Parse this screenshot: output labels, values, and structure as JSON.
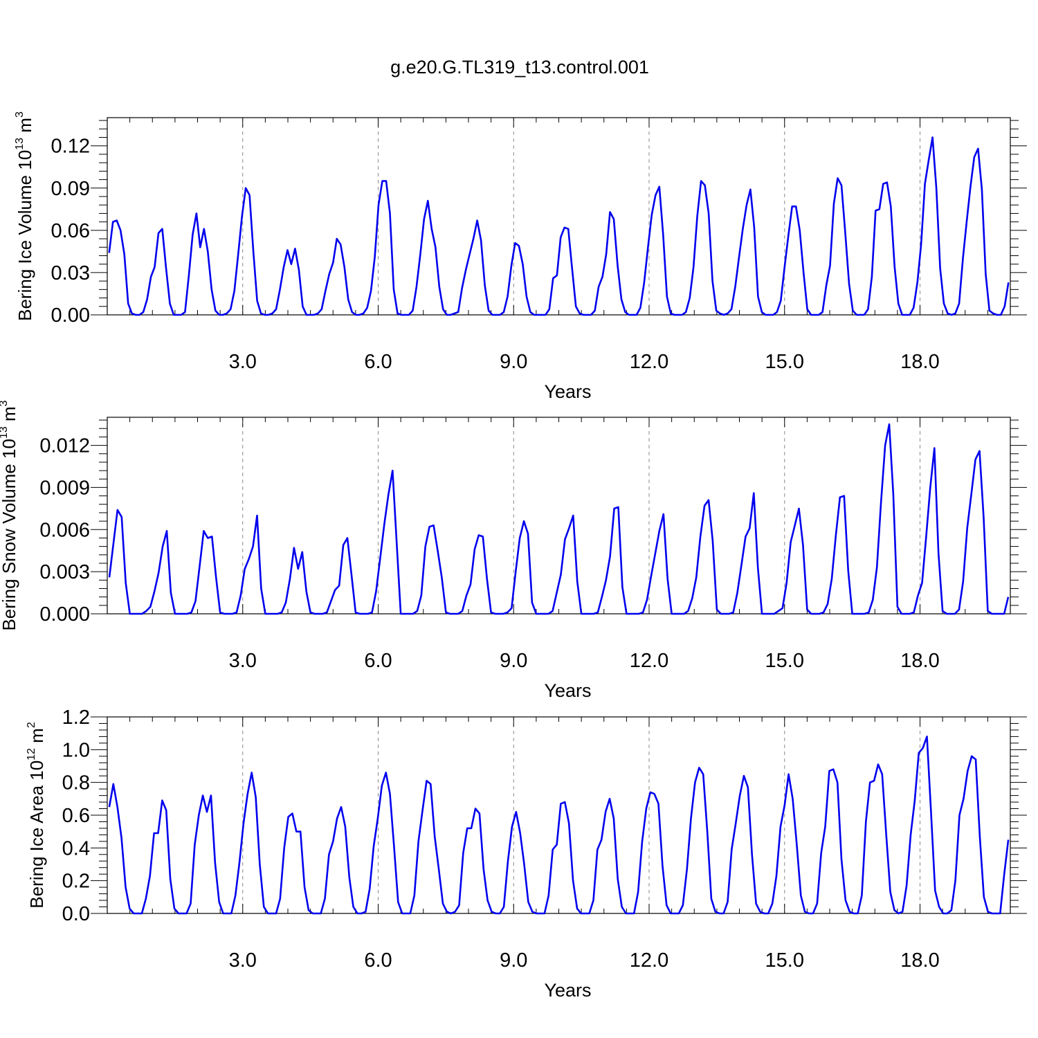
{
  "figure": {
    "title": "g.e20.G.TL319_t13.control.001"
  },
  "chart_data": [
    {
      "type": "line",
      "xlabel": "Years",
      "ylabel": {
        "base": "Bering Ice Volume 10",
        "exp": "13",
        "unit": " m",
        "unit_exp": "3"
      },
      "xlim": [
        0.0,
        20.0
      ],
      "ylim": [
        0.0,
        0.14
      ],
      "xticks": [
        3,
        6,
        9,
        12,
        15,
        18
      ],
      "xtick_labels": [
        "3.0",
        "6.0",
        "9.0",
        "12.0",
        "15.0",
        "18.0"
      ],
      "yticks": [
        0,
        0.03,
        0.06,
        0.09,
        0.12
      ],
      "ytick_labels": [
        "0.00",
        "0.03",
        "0.06",
        "0.09",
        "0.12"
      ],
      "grid": "vertical-dashed-major",
      "line_color": "#0000ee",
      "values": [
        0.044,
        0.066,
        0.067,
        0.06,
        0.043,
        0.008,
        0.001,
        0.0,
        0.0,
        0.002,
        0.011,
        0.027,
        0.034,
        0.058,
        0.061,
        0.033,
        0.008,
        0.0,
        0.0,
        0.0,
        0.002,
        0.028,
        0.057,
        0.072,
        0.048,
        0.061,
        0.045,
        0.018,
        0.003,
        0.0,
        0.0,
        0.001,
        0.004,
        0.017,
        0.043,
        0.07,
        0.09,
        0.085,
        0.045,
        0.01,
        0.001,
        0.0,
        0.0,
        0.001,
        0.004,
        0.018,
        0.034,
        0.046,
        0.036,
        0.047,
        0.032,
        0.006,
        0.0,
        0.0,
        0.0,
        0.001,
        0.004,
        0.017,
        0.029,
        0.037,
        0.054,
        0.05,
        0.034,
        0.011,
        0.002,
        0.0,
        0.0,
        0.001,
        0.005,
        0.017,
        0.041,
        0.078,
        0.095,
        0.095,
        0.072,
        0.018,
        0.001,
        0.0,
        0.0,
        0.0,
        0.003,
        0.02,
        0.043,
        0.068,
        0.081,
        0.061,
        0.048,
        0.02,
        0.004,
        0.0,
        0.0,
        0.001,
        0.002,
        0.019,
        0.032,
        0.043,
        0.054,
        0.067,
        0.053,
        0.021,
        0.003,
        0.0,
        0.0,
        0.0,
        0.002,
        0.013,
        0.035,
        0.051,
        0.049,
        0.036,
        0.013,
        0.002,
        0.0,
        0.0,
        0.0,
        0.0,
        0.004,
        0.026,
        0.028,
        0.055,
        0.062,
        0.061,
        0.033,
        0.006,
        0.001,
        0.0,
        0.0,
        0.0,
        0.003,
        0.02,
        0.027,
        0.043,
        0.073,
        0.068,
        0.035,
        0.011,
        0.002,
        0.0,
        0.0,
        0.0,
        0.005,
        0.023,
        0.048,
        0.071,
        0.085,
        0.091,
        0.057,
        0.013,
        0.001,
        0.0,
        0.0,
        0.0,
        0.002,
        0.012,
        0.034,
        0.07,
        0.095,
        0.092,
        0.072,
        0.024,
        0.003,
        0.001,
        0.0,
        0.001,
        0.004,
        0.02,
        0.041,
        0.061,
        0.078,
        0.089,
        0.062,
        0.013,
        0.002,
        0.0,
        0.0,
        0.0,
        0.002,
        0.01,
        0.034,
        0.056,
        0.077,
        0.077,
        0.06,
        0.03,
        0.004,
        0.0,
        0.0,
        0.0,
        0.002,
        0.021,
        0.035,
        0.079,
        0.097,
        0.092,
        0.058,
        0.022,
        0.003,
        0.0,
        0.0,
        0.0,
        0.004,
        0.027,
        0.074,
        0.075,
        0.093,
        0.094,
        0.077,
        0.034,
        0.008,
        0.0,
        0.0,
        0.0,
        0.005,
        0.023,
        0.05,
        0.093,
        0.11,
        0.126,
        0.09,
        0.033,
        0.008,
        0.001,
        0.0,
        0.001,
        0.008,
        0.04,
        0.066,
        0.091,
        0.112,
        0.118,
        0.089,
        0.029,
        0.003,
        0.001,
        0.0,
        0.0,
        0.006,
        0.023
      ]
    },
    {
      "type": "line",
      "xlabel": "Years",
      "ylabel": {
        "base": "Bering Snow Volume 10",
        "exp": "13",
        "unit": " m",
        "unit_exp": "3"
      },
      "xlim": [
        0.0,
        20.0
      ],
      "ylim": [
        0.0,
        0.014
      ],
      "xticks": [
        3,
        6,
        9,
        12,
        15,
        18
      ],
      "xtick_labels": [
        "3.0",
        "6.0",
        "9.0",
        "12.0",
        "15.0",
        "18.0"
      ],
      "yticks": [
        0,
        0.003,
        0.006,
        0.009,
        0.012
      ],
      "ytick_labels": [
        "0.000",
        "0.003",
        "0.006",
        "0.009",
        "0.012"
      ],
      "grid": "vertical-dashed-major",
      "line_color": "#0000ee",
      "values": [
        0.0026,
        0.005,
        0.0074,
        0.0069,
        0.0022,
        0.0,
        0.0,
        0.0,
        0.0,
        0.0002,
        0.0005,
        0.0016,
        0.0029,
        0.0048,
        0.0059,
        0.0015,
        0.0,
        0.0,
        0.0,
        0.0,
        0.0001,
        0.0009,
        0.0034,
        0.0059,
        0.0054,
        0.0055,
        0.0026,
        0.0001,
        0.0,
        0.0,
        0.0,
        0.0001,
        0.0013,
        0.0032,
        0.0039,
        0.0048,
        0.007,
        0.0018,
        0.0,
        0.0,
        0.0,
        0.0,
        0.0001,
        0.0008,
        0.0025,
        0.0047,
        0.0032,
        0.0044,
        0.0016,
        0.0001,
        0.0,
        0.0,
        0.0,
        0.0001,
        0.0009,
        0.0017,
        0.002,
        0.0049,
        0.0054,
        0.0028,
        0.0001,
        0.0,
        0.0,
        0.0,
        0.0001,
        0.0016,
        0.004,
        0.0064,
        0.0085,
        0.0102,
        0.0051,
        0.0,
        0.0,
        0.0,
        0.0,
        0.0002,
        0.0013,
        0.0048,
        0.0062,
        0.0063,
        0.0045,
        0.0026,
        0.0001,
        0.0,
        0.0,
        0.0,
        0.0002,
        0.0013,
        0.0021,
        0.0046,
        0.0056,
        0.0055,
        0.0025,
        0.0001,
        0.0,
        0.0,
        0.0,
        0.0001,
        0.0004,
        0.003,
        0.0054,
        0.0066,
        0.0057,
        0.0008,
        0.0,
        0.0,
        0.0,
        0.0,
        0.0002,
        0.0015,
        0.0028,
        0.0053,
        0.0061,
        0.007,
        0.0023,
        0.0,
        0.0,
        0.0,
        0.0,
        0.0001,
        0.0012,
        0.0024,
        0.0041,
        0.0075,
        0.0076,
        0.0019,
        0.0,
        0.0,
        0.0,
        0.0,
        0.0001,
        0.001,
        0.0027,
        0.0043,
        0.0059,
        0.0071,
        0.0025,
        0.0,
        0.0,
        0.0,
        0.0,
        0.0002,
        0.0011,
        0.0026,
        0.0055,
        0.0077,
        0.0081,
        0.0052,
        0.0003,
        0.0,
        0.0,
        0.0,
        0.0001,
        0.0015,
        0.0035,
        0.0055,
        0.0061,
        0.0086,
        0.0033,
        0.0,
        0.0,
        0.0,
        0.0,
        0.0002,
        0.0004,
        0.0022,
        0.0051,
        0.0063,
        0.0075,
        0.0049,
        0.0003,
        0.0,
        0.0,
        0.0,
        0.0001,
        0.0007,
        0.0025,
        0.0056,
        0.0083,
        0.0084,
        0.0031,
        0.0,
        0.0,
        0.0,
        0.0,
        0.0001,
        0.001,
        0.0033,
        0.0079,
        0.012,
        0.0135,
        0.0085,
        0.0005,
        0.0,
        0.0,
        0.0,
        0.0001,
        0.0013,
        0.0022,
        0.0055,
        0.009,
        0.0118,
        0.0043,
        0.0002,
        0.0,
        0.0,
        0.0,
        0.0003,
        0.0023,
        0.0061,
        0.0085,
        0.011,
        0.0116,
        0.0069,
        0.0002,
        0.0,
        0.0,
        0.0,
        0.0,
        0.0012
      ]
    },
    {
      "type": "line",
      "xlabel": "Years",
      "ylabel": {
        "base": "Bering Ice Area 10",
        "exp": "12",
        "unit": " m",
        "unit_exp": "2"
      },
      "xlim": [
        0.0,
        20.0
      ],
      "ylim": [
        0.0,
        1.2
      ],
      "xticks": [
        3,
        6,
        9,
        12,
        15,
        18
      ],
      "xtick_labels": [
        "3.0",
        "6.0",
        "9.0",
        "12.0",
        "15.0",
        "18.0"
      ],
      "yticks": [
        0,
        0.2,
        0.4,
        0.6,
        0.8,
        1.0,
        1.2
      ],
      "ytick_labels": [
        "0.0",
        "0.2",
        "0.4",
        "0.6",
        "0.8",
        "1.0",
        "1.2"
      ],
      "grid": "vertical-dashed-major",
      "line_color": "#0000ee",
      "values": [
        0.65,
        0.79,
        0.65,
        0.46,
        0.16,
        0.03,
        0.0,
        0.0,
        0.0,
        0.09,
        0.23,
        0.49,
        0.49,
        0.69,
        0.63,
        0.21,
        0.03,
        0.0,
        0.0,
        0.0,
        0.06,
        0.42,
        0.6,
        0.72,
        0.62,
        0.72,
        0.31,
        0.07,
        0.0,
        0.0,
        0.0,
        0.11,
        0.31,
        0.55,
        0.73,
        0.86,
        0.71,
        0.3,
        0.04,
        0.0,
        0.0,
        0.0,
        0.09,
        0.4,
        0.59,
        0.61,
        0.5,
        0.5,
        0.16,
        0.02,
        0.0,
        0.0,
        0.0,
        0.09,
        0.36,
        0.44,
        0.58,
        0.65,
        0.53,
        0.22,
        0.04,
        0.0,
        0.0,
        0.01,
        0.15,
        0.41,
        0.58,
        0.78,
        0.86,
        0.73,
        0.41,
        0.07,
        0.0,
        0.0,
        0.0,
        0.11,
        0.44,
        0.63,
        0.81,
        0.79,
        0.47,
        0.27,
        0.06,
        0.01,
        0.0,
        0.01,
        0.05,
        0.37,
        0.52,
        0.52,
        0.64,
        0.61,
        0.27,
        0.08,
        0.01,
        0.0,
        0.0,
        0.04,
        0.32,
        0.53,
        0.62,
        0.49,
        0.3,
        0.07,
        0.01,
        0.0,
        0.0,
        0.0,
        0.11,
        0.39,
        0.42,
        0.67,
        0.68,
        0.55,
        0.2,
        0.03,
        0.0,
        0.0,
        0.0,
        0.08,
        0.39,
        0.45,
        0.62,
        0.7,
        0.58,
        0.21,
        0.04,
        0.0,
        0.0,
        0.0,
        0.13,
        0.44,
        0.64,
        0.74,
        0.73,
        0.67,
        0.29,
        0.05,
        0.0,
        0.0,
        0.0,
        0.05,
        0.27,
        0.58,
        0.8,
        0.89,
        0.85,
        0.5,
        0.09,
        0.01,
        0.0,
        0.0,
        0.07,
        0.39,
        0.55,
        0.72,
        0.84,
        0.77,
        0.36,
        0.06,
        0.01,
        0.0,
        0.0,
        0.06,
        0.23,
        0.53,
        0.66,
        0.85,
        0.7,
        0.42,
        0.11,
        0.01,
        0.0,
        0.0,
        0.06,
        0.37,
        0.53,
        0.87,
        0.88,
        0.8,
        0.33,
        0.08,
        0.01,
        0.0,
        0.0,
        0.11,
        0.56,
        0.8,
        0.81,
        0.91,
        0.85,
        0.48,
        0.13,
        0.02,
        0.0,
        0.01,
        0.17,
        0.48,
        0.69,
        0.98,
        1.01,
        1.08,
        0.62,
        0.14,
        0.04,
        0.0,
        0.0,
        0.02,
        0.2,
        0.6,
        0.7,
        0.87,
        0.96,
        0.94,
        0.47,
        0.1,
        0.01,
        0.0,
        0.0,
        0.0,
        0.24,
        0.45
      ]
    }
  ]
}
